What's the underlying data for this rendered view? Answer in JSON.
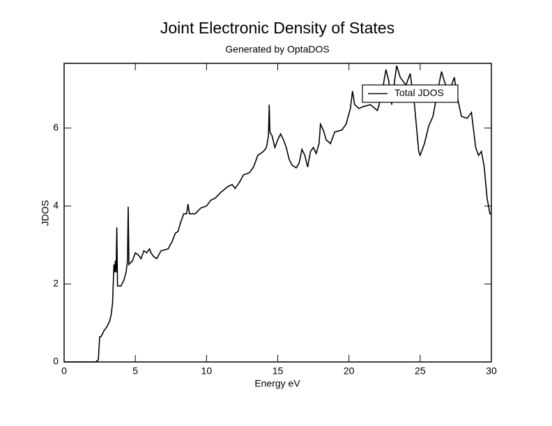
{
  "chart_data": {
    "type": "line",
    "title": "Joint Electronic Density of States",
    "subtitle": "Generated by OptaDOS",
    "xlabel": "Energy eV",
    "ylabel": "JDOS",
    "xlim": [
      0,
      30
    ],
    "ylim": [
      0,
      7.66
    ],
    "xticks": [
      0,
      5,
      10,
      15,
      20,
      25,
      30
    ],
    "yticks": [
      0,
      2,
      4,
      6
    ],
    "legend": "upper right",
    "grid": false,
    "x": [
      0,
      2.2,
      2.4,
      2.5,
      2.6,
      2.8,
      3.0,
      3.2,
      3.3,
      3.4,
      3.5,
      3.55,
      3.6,
      3.65,
      3.7,
      3.75,
      4.0,
      4.2,
      4.35,
      4.45,
      4.5,
      4.55,
      4.8,
      5.0,
      5.2,
      5.4,
      5.6,
      5.8,
      6.0,
      6.1,
      6.3,
      6.5,
      6.8,
      7.3,
      7.6,
      7.8,
      8.0,
      8.2,
      8.4,
      8.6,
      8.7,
      8.8,
      9.2,
      9.6,
      10.0,
      10.3,
      10.6,
      11.0,
      11.5,
      11.8,
      12.0,
      12.3,
      12.6,
      13.0,
      13.3,
      13.6,
      14.0,
      14.2,
      14.35,
      14.4,
      14.45,
      14.6,
      14.8,
      15.0,
      15.2,
      15.4,
      15.6,
      15.8,
      16.0,
      16.3,
      16.5,
      16.7,
      16.9,
      17.1,
      17.3,
      17.5,
      17.7,
      17.9,
      18.0,
      18.2,
      18.4,
      18.7,
      19.0,
      19.5,
      19.8,
      20.1,
      20.25,
      20.4,
      20.7,
      21.0,
      21.5,
      22.0,
      22.3,
      22.5,
      22.6,
      22.8,
      23.0,
      23.2,
      23.35,
      23.6,
      24.0,
      24.3,
      24.6,
      24.9,
      25.0,
      25.3,
      25.6,
      25.9,
      26.2,
      26.5,
      26.7,
      27.0,
      27.4,
      27.6,
      27.9,
      28.3,
      28.6,
      28.9,
      29.1,
      29.3,
      29.5,
      29.7,
      29.9,
      30.0
    ],
    "series": [
      {
        "name": "Total JDOS",
        "color": "#000000",
        "values": [
          0,
          0,
          0.05,
          0.65,
          0.65,
          0.8,
          0.9,
          1.05,
          1.2,
          1.5,
          2.5,
          2.3,
          2.6,
          2.3,
          3.45,
          1.95,
          1.95,
          2.1,
          2.3,
          2.6,
          3.98,
          2.5,
          2.6,
          2.8,
          2.75,
          2.65,
          2.85,
          2.8,
          2.9,
          2.8,
          2.7,
          2.65,
          2.85,
          2.9,
          3.1,
          3.3,
          3.35,
          3.6,
          3.8,
          3.8,
          4.05,
          3.8,
          3.8,
          3.95,
          4.0,
          4.15,
          4.2,
          4.35,
          4.5,
          4.55,
          4.45,
          4.6,
          4.8,
          4.85,
          5.0,
          5.3,
          5.4,
          5.5,
          5.8,
          6.6,
          5.9,
          5.8,
          5.5,
          5.7,
          5.85,
          5.7,
          5.5,
          5.2,
          5.05,
          4.98,
          5.1,
          5.45,
          5.3,
          5.0,
          5.4,
          5.5,
          5.35,
          5.6,
          6.1,
          5.95,
          5.7,
          5.6,
          5.9,
          5.95,
          6.1,
          6.5,
          6.95,
          6.6,
          6.5,
          6.55,
          6.6,
          6.45,
          6.85,
          7.3,
          7.5,
          7.2,
          6.6,
          7.2,
          7.6,
          7.3,
          7.1,
          7.4,
          6.6,
          5.4,
          5.3,
          5.6,
          6.05,
          6.3,
          6.9,
          7.45,
          7.2,
          6.9,
          7.3,
          6.8,
          6.3,
          6.25,
          6.4,
          5.5,
          5.3,
          5.4,
          5.0,
          4.2,
          3.8,
          3.8
        ]
      }
    ]
  }
}
